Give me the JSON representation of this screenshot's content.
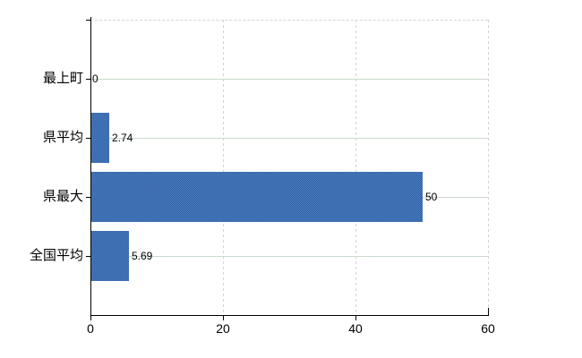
{
  "chart_data": {
    "type": "bar",
    "orientation": "horizontal",
    "title": "",
    "xlabel": "",
    "ylabel": "",
    "categories": [
      "最上町",
      "県平均",
      "県最大",
      "全国平均"
    ],
    "values": [
      0,
      2.74,
      50,
      5.69
    ],
    "value_labels": [
      "0",
      "2.74",
      "50",
      "5.69"
    ],
    "xlim": [
      0,
      60
    ],
    "xticks": [
      0,
      20,
      40,
      60
    ],
    "xtick_labels": [
      "0",
      "20",
      "40",
      "60"
    ],
    "grid": true,
    "legend": false,
    "colors": {
      "bar_dark": "#2f63a4",
      "bar_light": "#4e7cc1",
      "h_gridline": "#ccdacc",
      "v_gridline": "#d8cfda",
      "top_border": "#d6d6d6",
      "axis": "#000000",
      "text": "#000000",
      "background": "#ffffff"
    }
  }
}
